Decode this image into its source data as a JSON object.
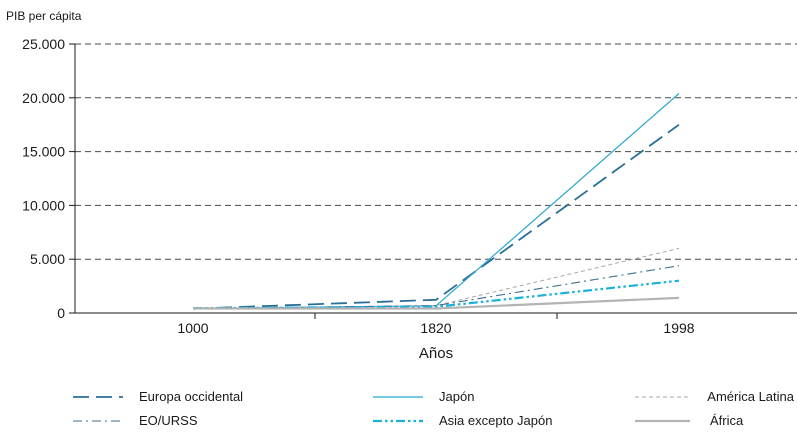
{
  "chart_data": {
    "type": "line",
    "title": "",
    "ylabel": "PIB per cápita",
    "xlabel": "Años",
    "x": [
      "1000",
      "1820",
      "1998"
    ],
    "ylim": [
      0,
      25000
    ],
    "y_ticks": [
      0,
      5000,
      10000,
      15000,
      20000,
      25000
    ],
    "y_tick_labels": [
      "0",
      "5.000",
      "10.000",
      "15.000",
      "20.000",
      "25.000"
    ],
    "grid": "horizontal dashed",
    "legend_position": "bottom",
    "series": [
      {
        "name": "Europa occidental",
        "values": [
          400,
          1230,
          17500
        ],
        "color": "#2a6e96",
        "style": "long-dash"
      },
      {
        "name": "Japón",
        "values": [
          420,
          670,
          20400
        ],
        "color": "#29a8d0",
        "style": "solid-thin"
      },
      {
        "name": "América Latina",
        "values": [
          400,
          690,
          6000
        ],
        "color": "#a8a8a8",
        "style": "short-dash"
      },
      {
        "name": "EO/URSS",
        "values": [
          400,
          690,
          4400
        ],
        "color": "#3d6e8f",
        "style": "dash-dot"
      },
      {
        "name": "Asia excepto Japón",
        "values": [
          450,
          580,
          3000
        ],
        "color": "#1ab0dc",
        "style": "dash-dot-dot"
      },
      {
        "name": "África",
        "values": [
          420,
          420,
          1400
        ],
        "color": "#b4b4b4",
        "style": "solid-thick"
      }
    ]
  }
}
